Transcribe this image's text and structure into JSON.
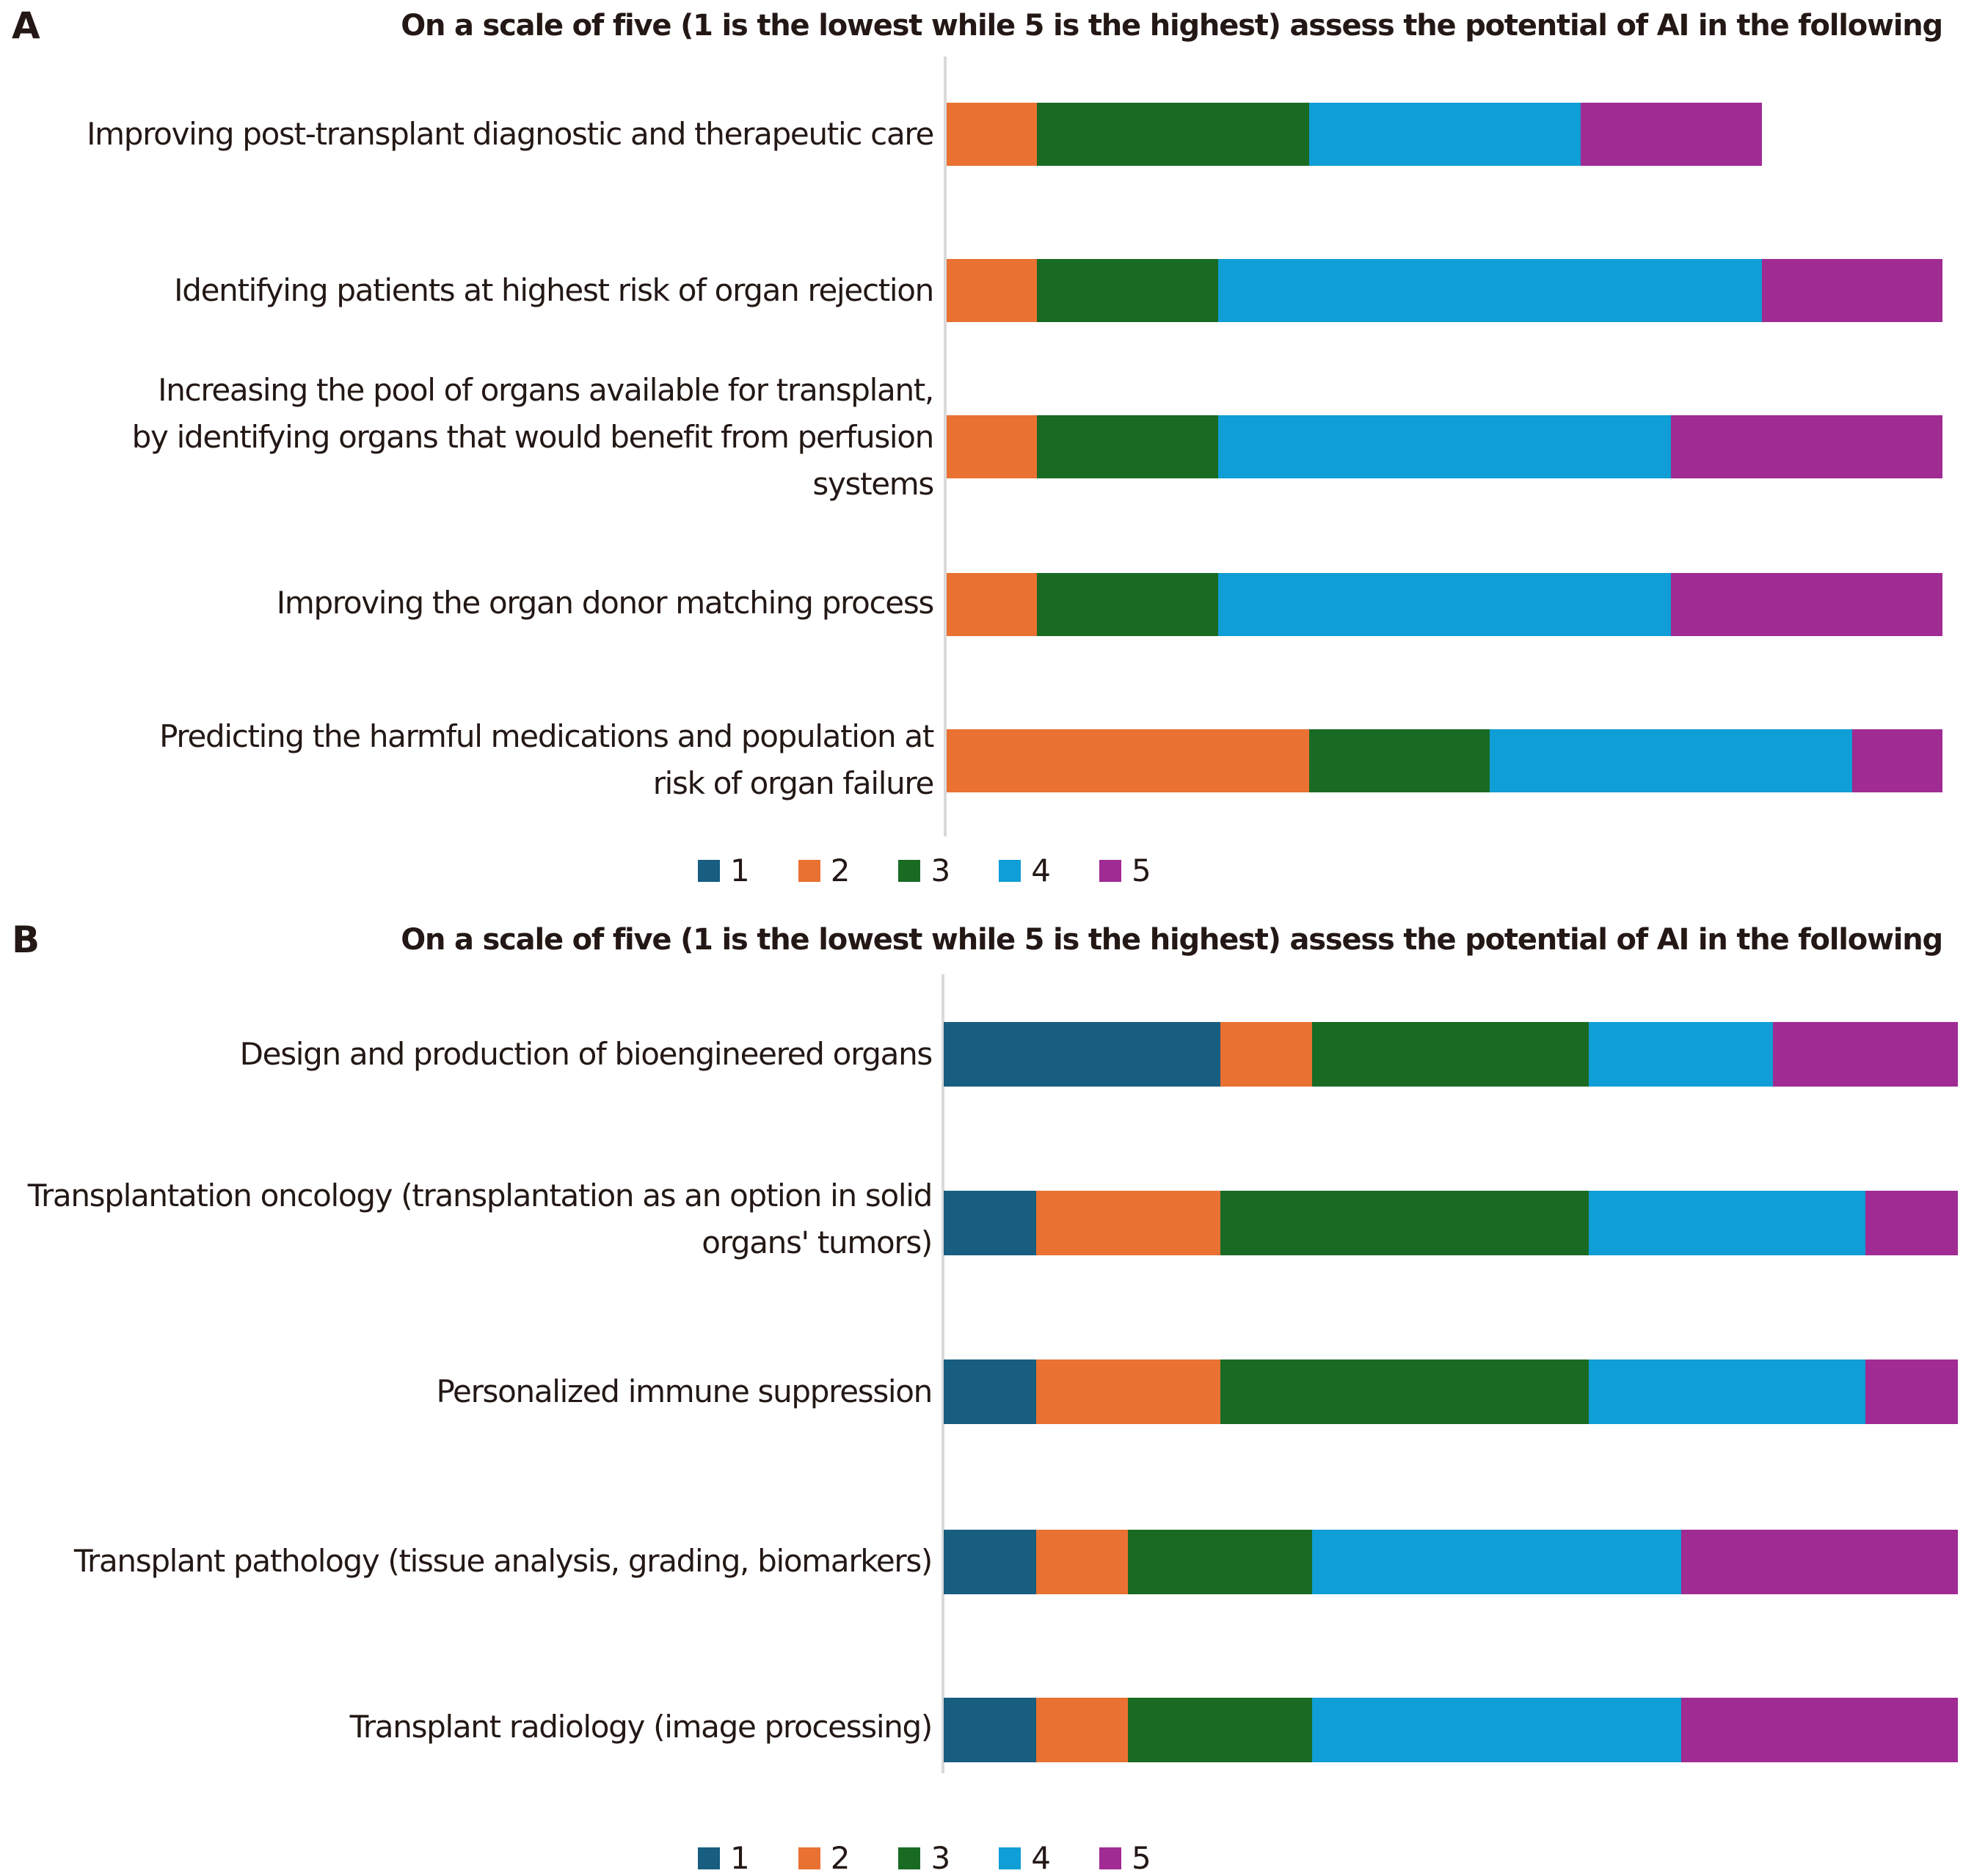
{
  "panels": [
    {
      "letter": "A",
      "title": "On a scale of five (1 is the lowest while 5 is the highest) assess the potential of AI in the following"
    },
    {
      "letter": "B",
      "title": "On a scale of five (1 is the lowest while 5 is the highest) assess the potential of AI in the following"
    }
  ],
  "legend": [
    {
      "label": "1",
      "color": "#175e80"
    },
    {
      "label": "2",
      "color": "#e97132"
    },
    {
      "label": "3",
      "color": "#196b24"
    },
    {
      "label": "4",
      "color": "#0f9ed5"
    },
    {
      "label": "5",
      "color": "#a02b93"
    }
  ],
  "chart_data": [
    {
      "type": "bar",
      "orientation": "horizontal",
      "stacked": true,
      "title": "On a scale of five (1 is the lowest while 5 is the highest) assess the potential of AI in the following",
      "panel": "A",
      "categories": [
        "Improving post-transplant diagnostic and therapeutic care",
        "Identifying patients at highest risk of organ rejection",
        "Increasing the pool of organs available for transplant,\nby identifying organs that would benefit from perfusion\nsystems",
        "Improving the organ donor matching process",
        "Predicting the harmful medications and population at\nrisk of organ failure"
      ],
      "series": [
        {
          "name": "1",
          "values": [
            0,
            0,
            0,
            0,
            0
          ]
        },
        {
          "name": "2",
          "values": [
            1,
            1,
            1,
            1,
            4
          ]
        },
        {
          "name": "3",
          "values": [
            3,
            2,
            2,
            2,
            2
          ]
        },
        {
          "name": "4",
          "values": [
            3,
            6,
            5,
            5,
            4
          ]
        },
        {
          "name": "5",
          "values": [
            2,
            2,
            3,
            3,
            1
          ]
        }
      ],
      "xlim": [
        0,
        11
      ],
      "xlabel": "",
      "ylabel": "",
      "grid": false,
      "legend_position": "bottom"
    },
    {
      "type": "bar",
      "orientation": "horizontal",
      "stacked": true,
      "title": "On a scale of five (1 is the lowest while 5 is the highest) assess the potential of AI in the following",
      "panel": "B",
      "categories": [
        "Design and production of bioengineered organs",
        "Transplantation oncology (transplantation as an option in solid\norgans' tumors)",
        "Personalized immune suppression",
        "Transplant pathology (tissue analysis, grading, biomarkers)",
        "Transplant radiology (image processing)"
      ],
      "series": [
        {
          "name": "1",
          "values": [
            3,
            1,
            1,
            1,
            1
          ]
        },
        {
          "name": "2",
          "values": [
            1,
            2,
            2,
            1,
            1
          ]
        },
        {
          "name": "3",
          "values": [
            3,
            4,
            4,
            2,
            2
          ]
        },
        {
          "name": "4",
          "values": [
            2,
            3,
            3,
            4,
            4
          ]
        },
        {
          "name": "5",
          "values": [
            2,
            1,
            1,
            3,
            3
          ]
        }
      ],
      "xlim": [
        0,
        11
      ],
      "xlabel": "",
      "ylabel": "",
      "grid": false,
      "legend_position": "bottom"
    }
  ]
}
